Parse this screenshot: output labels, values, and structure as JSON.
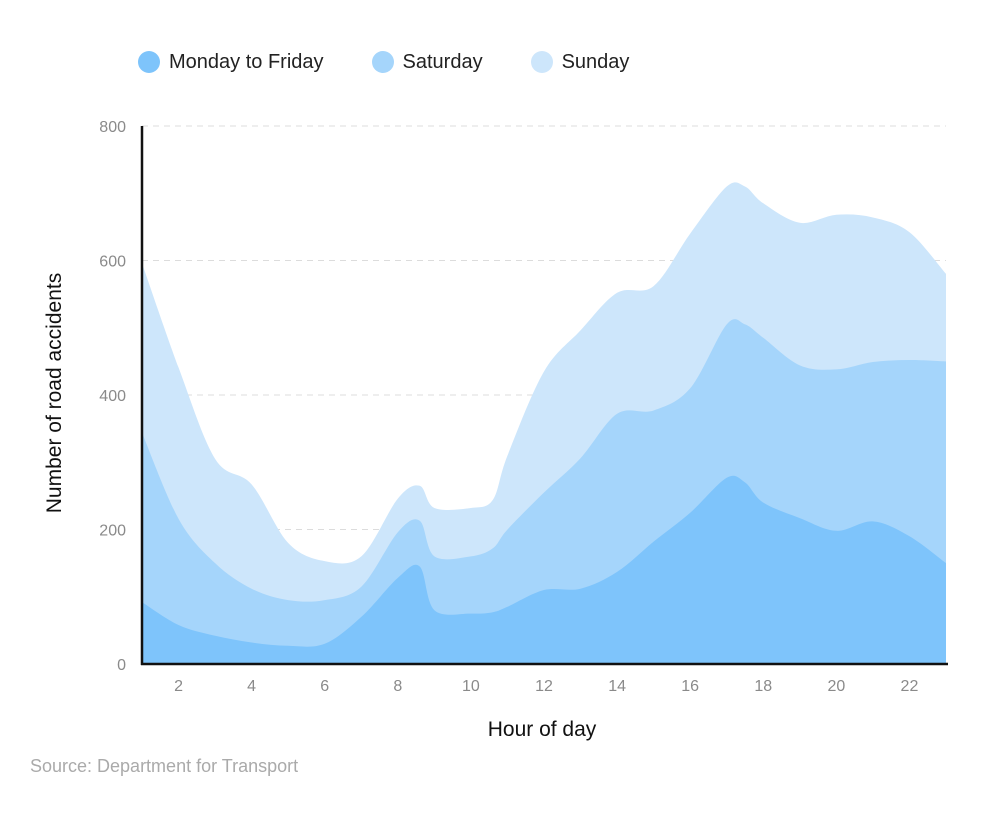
{
  "chart_data": {
    "type": "area",
    "stacked": true,
    "xlabel": "Hour of day",
    "ylabel": "Number of road accidents",
    "xlim": [
      1,
      23
    ],
    "ylim": [
      0,
      800
    ],
    "x_ticks": [
      2,
      4,
      6,
      8,
      10,
      12,
      14,
      16,
      18,
      20,
      22
    ],
    "y_ticks": [
      0,
      200,
      400,
      600,
      800
    ],
    "grid": "horizontal dashed",
    "legend_position": "top-left",
    "x": [
      1,
      2,
      3,
      4,
      5,
      6,
      7,
      8,
      8.6,
      9,
      10,
      10.6,
      11,
      12,
      13,
      14,
      15,
      16,
      17,
      17.5,
      18,
      19,
      20,
      21,
      22,
      23
    ],
    "series": [
      {
        "name": "Monday to Friday",
        "color": "#7ec4fb",
        "values": [
          92,
          58,
          42,
          32,
          27,
          30,
          70,
          128,
          145,
          80,
          75,
          77,
          85,
          110,
          112,
          137,
          182,
          225,
          277,
          270,
          240,
          217,
          198,
          212,
          190,
          150
        ]
      },
      {
        "name": "Saturday",
        "color": "#a5d5fb",
        "values": [
          252,
          158,
          108,
          80,
          68,
          65,
          45,
          68,
          68,
          80,
          85,
          95,
          115,
          145,
          194,
          235,
          195,
          185,
          228,
          235,
          245,
          227,
          240,
          237,
          262,
          300
        ]
      },
      {
        "name": "Sunday",
        "color": "#cde6fb",
        "values": [
          252,
          225,
          155,
          155,
          85,
          58,
          45,
          50,
          52,
          72,
          72,
          72,
          110,
          180,
          190,
          180,
          185,
          230,
          205,
          205,
          200,
          212,
          230,
          215,
          190,
          130
        ]
      }
    ],
    "source": "Source: Department for Transport"
  }
}
